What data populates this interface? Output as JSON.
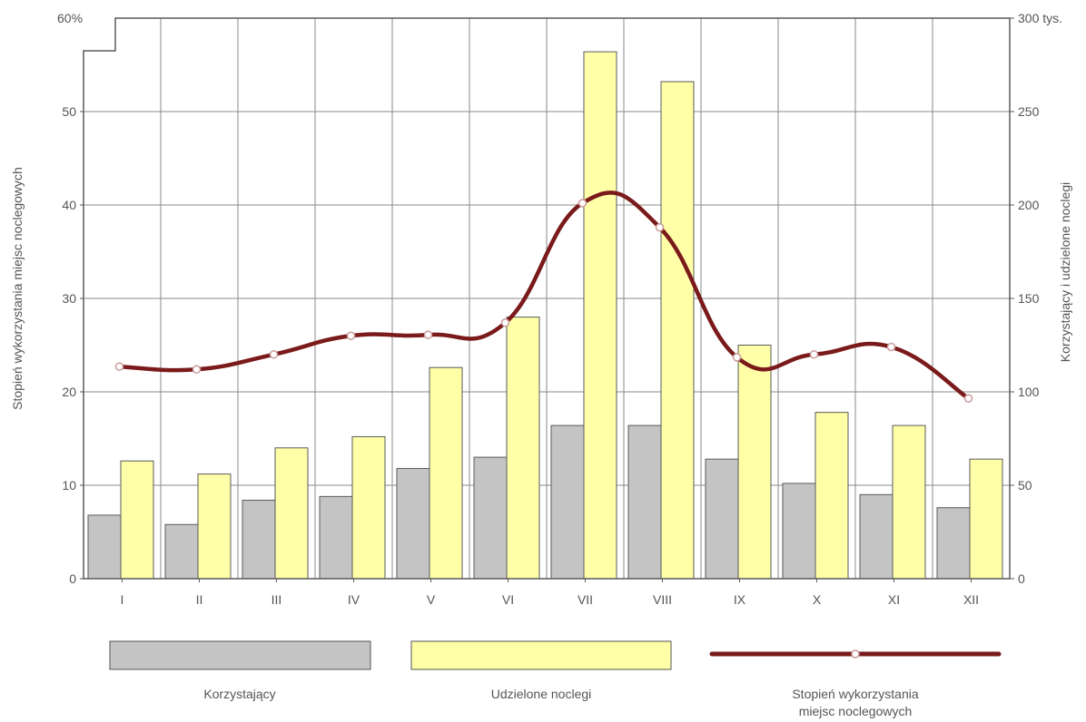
{
  "chart_data": {
    "type": "bar",
    "categories": [
      "I",
      "II",
      "III",
      "IV",
      "V",
      "VI",
      "VII",
      "VIII",
      "IX",
      "X",
      "XI",
      "XII"
    ],
    "series": [
      {
        "name": "Korzystający",
        "axis": "right",
        "color": "#c4c4c4",
        "values": [
          34,
          29,
          42,
          44,
          59,
          65,
          82,
          82,
          64,
          51,
          45,
          38
        ]
      },
      {
        "name": "Udzielone noclegi",
        "axis": "right",
        "color": "#ffffa8",
        "values": [
          63,
          56,
          70,
          76,
          113,
          140,
          282,
          266,
          125,
          89,
          82,
          64
        ]
      },
      {
        "name": "Stopień wykorzystania miejsc noclegowych",
        "axis": "left",
        "type": "line",
        "color": "#7a1a1a",
        "values": [
          22.7,
          22.4,
          24.0,
          26.0,
          26.1,
          27.4,
          40.2,
          37.6,
          23.7,
          24.0,
          24.8,
          19.3
        ]
      }
    ],
    "y_left": {
      "label": "Stopień wykorzystania miejsc noclegowych",
      "range": [
        0,
        60
      ],
      "ticks": [
        {
          "value": 0,
          "label": "0"
        },
        {
          "value": 10,
          "label": "10"
        },
        {
          "value": 20,
          "label": "20"
        },
        {
          "value": 30,
          "label": "30"
        },
        {
          "value": 40,
          "label": "40"
        },
        {
          "value": 50,
          "label": "50"
        },
        {
          "value": 60,
          "label": "60%"
        }
      ]
    },
    "y_right": {
      "label": "Korzystający i udzielone noclegi",
      "range": [
        0,
        300
      ],
      "ticks": [
        {
          "value": 0,
          "label": "0"
        },
        {
          "value": 50,
          "label": "50"
        },
        {
          "value": 100,
          "label": "100"
        },
        {
          "value": 150,
          "label": "150"
        },
        {
          "value": 200,
          "label": "200"
        },
        {
          "value": 250,
          "label": "250"
        },
        {
          "value": 300,
          "label": "300 tys."
        }
      ]
    },
    "grid": true,
    "legend": {
      "position": "bottom",
      "items": [
        {
          "key": "korzystajacy",
          "label": "Korzystający"
        },
        {
          "key": "noclegi",
          "label": "Udzielone noclegi"
        },
        {
          "key": "stopien",
          "label_lines": [
            "Stopień wykorzystania",
            "miejsc noclegowych"
          ]
        }
      ]
    }
  }
}
